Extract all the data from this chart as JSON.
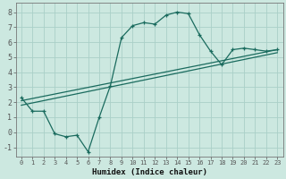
{
  "xlabel": "Humidex (Indice chaleur)",
  "ylabel": "",
  "xlim": [
    -0.5,
    23.5
  ],
  "ylim": [
    -1.6,
    8.6
  ],
  "xticks": [
    0,
    1,
    2,
    3,
    4,
    5,
    6,
    7,
    8,
    9,
    10,
    11,
    12,
    13,
    14,
    15,
    16,
    17,
    18,
    19,
    20,
    21,
    22,
    23
  ],
  "yticks": [
    -1,
    0,
    1,
    2,
    3,
    4,
    5,
    6,
    7,
    8
  ],
  "bg_color": "#cce8e0",
  "line_color": "#1a6b5e",
  "grid_color": "#aad0c8",
  "main_line": [
    [
      0,
      2.3
    ],
    [
      1,
      1.4
    ],
    [
      2,
      1.4
    ],
    [
      3,
      -0.1
    ],
    [
      4,
      -0.3
    ],
    [
      5,
      -0.2
    ],
    [
      6,
      -1.3
    ],
    [
      7,
      1.0
    ],
    [
      8,
      3.1
    ],
    [
      9,
      6.3
    ],
    [
      10,
      7.1
    ],
    [
      11,
      7.3
    ],
    [
      12,
      7.2
    ],
    [
      13,
      7.8
    ],
    [
      14,
      8.0
    ],
    [
      15,
      7.9
    ],
    [
      16,
      6.5
    ],
    [
      17,
      5.4
    ],
    [
      18,
      4.5
    ],
    [
      19,
      5.5
    ],
    [
      20,
      5.6
    ],
    [
      21,
      5.5
    ],
    [
      22,
      5.4
    ],
    [
      23,
      5.5
    ]
  ],
  "reg_line1": [
    [
      0,
      2.1
    ],
    [
      23,
      5.5
    ]
  ],
  "reg_line2": [
    [
      0,
      1.8
    ],
    [
      23,
      5.3
    ]
  ]
}
